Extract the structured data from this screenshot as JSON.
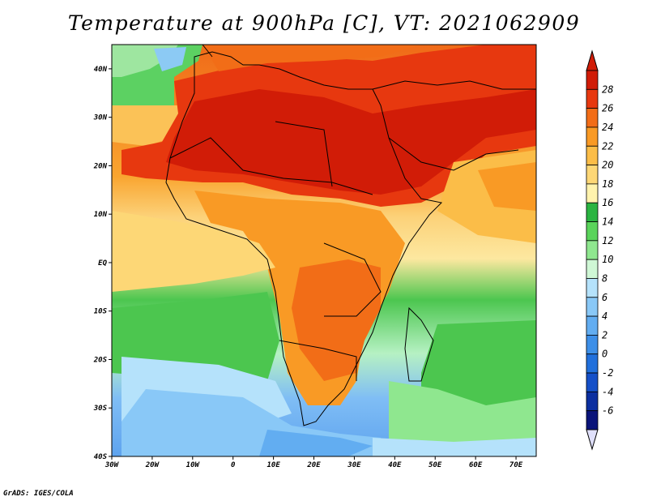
{
  "title": "Temperature at 900hPa [C], VT: 2021062909",
  "credit": "GrADS: IGES/COLA",
  "map": {
    "lat_labels": [
      "40N",
      "30N",
      "20N",
      "10N",
      "EQ",
      "10S",
      "20S",
      "30S",
      "40S"
    ],
    "lon_labels": [
      "30W",
      "20W",
      "10W",
      "0",
      "10E",
      "20E",
      "30E",
      "40E",
      "50E",
      "60E",
      "70E"
    ],
    "lon_range": [
      -30,
      75
    ],
    "lat_range": [
      -40,
      45
    ],
    "colors": {
      "frame": "#000000",
      "coast": "#000000"
    }
  },
  "colorbar": {
    "levels": [
      "28",
      "26",
      "24",
      "22",
      "20",
      "18",
      "16",
      "14",
      "12",
      "10",
      "8",
      "6",
      "4",
      "2",
      "0",
      "-2",
      "-4",
      "-6"
    ],
    "colors": [
      "#d11c07",
      "#e7380f",
      "#f26d17",
      "#f99a25",
      "#fbbd48",
      "#fdd776",
      "#fff3ad",
      "#2ab441",
      "#5ad45b",
      "#8fe78f",
      "#cff7d5",
      "#b5e2fb",
      "#89c8f7",
      "#62adf1",
      "#3d8fe8",
      "#2170dc",
      "#1550c8",
      "#0c2fa0",
      "#0a147a"
    ],
    "low_end_color": "#e0e0fb",
    "high_end_color": "#d11c07"
  }
}
